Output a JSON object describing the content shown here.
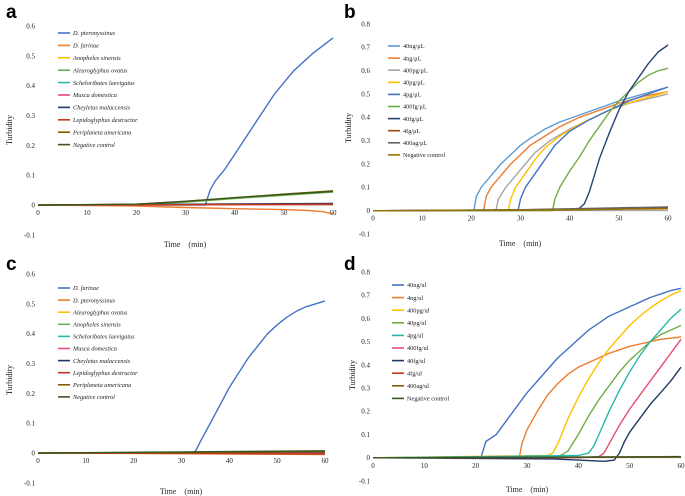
{
  "chart_data": [
    {
      "panel": "a",
      "type": "line",
      "title": "",
      "xlabel": "Time　(min)",
      "ylabel": "Turbidity",
      "xlim": [
        0,
        60
      ],
      "ylim": [
        -0.1,
        0.6
      ],
      "xticks": [
        0,
        10,
        20,
        30,
        40,
        50,
        60
      ],
      "yticks": [
        -0.1,
        0,
        0.1,
        0.2,
        0.3,
        0.4,
        0.5,
        0.6
      ],
      "ytick_labels": [
        "-0.1",
        "0",
        "0.1",
        "0.2",
        "0.3",
        "0.4",
        "0.5",
        "0.6"
      ],
      "legend_italic": true,
      "legend_position": "top-left",
      "series": [
        {
          "name": "D. pteronyssinus",
          "color": "#4472c4",
          "x": [
            0,
            34,
            35,
            36,
            38,
            40,
            42,
            44,
            46,
            48,
            50,
            52,
            54,
            56,
            58,
            60
          ],
          "y": [
            0,
            0,
            0.05,
            0.08,
            0.12,
            0.17,
            0.22,
            0.27,
            0.32,
            0.37,
            0.41,
            0.45,
            0.48,
            0.51,
            0.535,
            0.56
          ]
        },
        {
          "name": "D. farinae",
          "color": "#ed7d31",
          "x": [
            0,
            20,
            30,
            40,
            50,
            55,
            58,
            60
          ],
          "y": [
            0,
            -0.003,
            -0.008,
            -0.012,
            -0.015,
            -0.018,
            -0.022,
            -0.03
          ]
        },
        {
          "name": "Anopheles sinensis",
          "color": "#ffc000",
          "x": [
            0,
            20,
            30,
            40,
            50,
            60
          ],
          "y": [
            0,
            0.003,
            0.012,
            0.024,
            0.036,
            0.048
          ]
        },
        {
          "name": "Aleuroglyphus ovatus",
          "color": "#70ad47",
          "x": [
            0,
            20,
            30,
            40,
            50,
            60
          ],
          "y": [
            0,
            0.002,
            0.01,
            0.022,
            0.033,
            0.044
          ]
        },
        {
          "name": "Scheloribates laevigatus",
          "color": "#2ab7a9",
          "x": [
            0,
            60
          ],
          "y": [
            0,
            0.004
          ]
        },
        {
          "name": "Musca domestica",
          "color": "#e64e6e",
          "x": [
            0,
            60
          ],
          "y": [
            0,
            0.002
          ]
        },
        {
          "name": "Cheyletus malaccensis",
          "color": "#1f3864",
          "x": [
            0,
            60
          ],
          "y": [
            0,
            0.006
          ]
        },
        {
          "name": "Lepidoglyphus destructor",
          "color": "#c0391b",
          "x": [
            0,
            60
          ],
          "y": [
            0,
            0.003
          ]
        },
        {
          "name": "Periplaneta americana",
          "color": "#7f6000",
          "x": [
            0,
            20,
            30,
            40,
            50,
            60
          ],
          "y": [
            0,
            0.003,
            0.013,
            0.025,
            0.037,
            0.048
          ]
        },
        {
          "name": "Negative control",
          "color": "#375623",
          "x": [
            0,
            20,
            30,
            40,
            50,
            60
          ],
          "y": [
            0,
            0.003,
            0.013,
            0.025,
            0.036,
            0.046
          ]
        }
      ]
    },
    {
      "panel": "b",
      "type": "line",
      "title": "",
      "xlabel": "Time　(min)",
      "ylabel": "Turbidity",
      "xlim": [
        0,
        60
      ],
      "ylim": [
        -0.1,
        0.8
      ],
      "xticks": [
        0,
        10,
        20,
        30,
        40,
        50,
        60
      ],
      "yticks": [
        -0.1,
        0,
        0.1,
        0.2,
        0.3,
        0.4,
        0.5,
        0.6,
        0.7,
        0.8
      ],
      "ytick_labels": [
        "-0.1",
        "0",
        "0.1",
        "0.2",
        "0.3",
        "0.4",
        "0.5",
        "0.6",
        "0.7",
        "0.8"
      ],
      "legend_italic": false,
      "legend_position": "top-left",
      "series": [
        {
          "name": "40ng/μL",
          "color": "#5b9bd5",
          "x": [
            0,
            20.5,
            21,
            22,
            24,
            26,
            28,
            30,
            32,
            35,
            38,
            42,
            46,
            50,
            55,
            60
          ],
          "y": [
            0,
            0,
            0.06,
            0.1,
            0.15,
            0.2,
            0.24,
            0.28,
            0.31,
            0.35,
            0.38,
            0.41,
            0.44,
            0.47,
            0.5,
            0.53
          ]
        },
        {
          "name": "4ng/μL",
          "color": "#ed7d31",
          "x": [
            0,
            22.5,
            23,
            24,
            26,
            28,
            30,
            32,
            35,
            38,
            42,
            46,
            50,
            55,
            60
          ],
          "y": [
            0,
            0,
            0.06,
            0.1,
            0.15,
            0.2,
            0.24,
            0.28,
            0.32,
            0.36,
            0.4,
            0.43,
            0.46,
            0.49,
            0.51
          ]
        },
        {
          "name": "400pg/μL",
          "color": "#a5a5a5",
          "x": [
            0,
            25,
            25.5,
            27,
            29,
            31,
            33,
            36,
            40,
            44,
            48,
            52,
            56,
            60
          ],
          "y": [
            0,
            0,
            0.05,
            0.1,
            0.15,
            0.2,
            0.25,
            0.3,
            0.35,
            0.39,
            0.43,
            0.46,
            0.48,
            0.5
          ]
        },
        {
          "name": "40pg/μL",
          "color": "#ffc000",
          "x": [
            0,
            27.5,
            28,
            29,
            31,
            33,
            35,
            38,
            42,
            46,
            50,
            55,
            60
          ],
          "y": [
            0,
            0,
            0.05,
            0.1,
            0.16,
            0.22,
            0.27,
            0.32,
            0.37,
            0.41,
            0.45,
            0.48,
            0.51
          ]
        },
        {
          "name": "4pg/μL",
          "color": "#4472c4",
          "x": [
            0,
            29.5,
            30,
            31,
            33,
            35,
            37,
            40,
            44,
            48,
            52,
            56,
            60
          ],
          "y": [
            0,
            0,
            0.05,
            0.1,
            0.16,
            0.22,
            0.28,
            0.34,
            0.39,
            0.43,
            0.47,
            0.5,
            0.53
          ]
        },
        {
          "name": "400fg/μL",
          "color": "#70ad47",
          "x": [
            0,
            36.5,
            37,
            38,
            40,
            42,
            44,
            46,
            48,
            50,
            52,
            54,
            56,
            58,
            60
          ],
          "y": [
            0,
            0,
            0.05,
            0.1,
            0.17,
            0.23,
            0.3,
            0.36,
            0.42,
            0.47,
            0.51,
            0.55,
            0.58,
            0.6,
            0.61
          ]
        },
        {
          "name": "40fg/μL",
          "color": "#264478",
          "x": [
            0,
            40,
            42,
            43,
            44,
            45,
            46,
            48,
            50,
            52,
            54,
            56,
            58,
            60
          ],
          "y": [
            0,
            0.005,
            0.01,
            0.03,
            0.08,
            0.15,
            0.22,
            0.33,
            0.43,
            0.51,
            0.57,
            0.63,
            0.68,
            0.71
          ]
        },
        {
          "name": "4fg/μL",
          "color": "#9e480e",
          "x": [
            0,
            30,
            45,
            60
          ],
          "y": [
            0,
            0.003,
            0.008,
            0.012
          ]
        },
        {
          "name": "400ag/μL",
          "color": "#636363",
          "x": [
            0,
            30,
            45,
            60
          ],
          "y": [
            0,
            0.004,
            0.01,
            0.016
          ]
        },
        {
          "name": "Negative control",
          "color": "#997300",
          "x": [
            0,
            30,
            45,
            60
          ],
          "y": [
            0,
            0.002,
            0.005,
            0.008
          ]
        }
      ]
    },
    {
      "panel": "c",
      "type": "line",
      "title": "",
      "xlabel": "Time　(min)",
      "ylabel": "Turbidity",
      "xlim": [
        0,
        60
      ],
      "ylim": [
        -0.1,
        0.6
      ],
      "xticks": [
        0,
        10,
        20,
        30,
        40,
        50,
        60
      ],
      "yticks": [
        -0.1,
        0,
        0.1,
        0.2,
        0.3,
        0.4,
        0.5,
        0.6
      ],
      "ytick_labels": [
        "-0.1",
        "0",
        "0.1",
        "0.2",
        "0.3",
        "0.4",
        "0.5",
        "0.6"
      ],
      "legend_italic": true,
      "legend_position": "top-left",
      "series": [
        {
          "name": "D. farinae",
          "color": "#4472c4",
          "x": [
            0,
            32.5,
            33,
            34,
            36,
            38,
            40,
            42,
            44,
            46,
            48,
            50,
            52,
            54,
            56,
            58,
            60
          ],
          "y": [
            0,
            0,
            0.01,
            0.04,
            0.1,
            0.16,
            0.22,
            0.27,
            0.32,
            0.36,
            0.4,
            0.43,
            0.455,
            0.475,
            0.49,
            0.5,
            0.51
          ]
        },
        {
          "name": "D. pteronyssinus",
          "color": "#ed7d31",
          "x": [
            0,
            30,
            60
          ],
          "y": [
            0,
            -0.002,
            -0.005
          ]
        },
        {
          "name": "Aleuroglyphus ovatus",
          "color": "#ffc000",
          "x": [
            0,
            30,
            60
          ],
          "y": [
            0,
            0.001,
            0.003
          ]
        },
        {
          "name": "Anopheles sinensis",
          "color": "#70ad47",
          "x": [
            0,
            30,
            60
          ],
          "y": [
            0,
            0.002,
            0.004
          ]
        },
        {
          "name": "Scheloribates laevigatus",
          "color": "#2ab7a9",
          "x": [
            0,
            30,
            60
          ],
          "y": [
            0,
            0.003,
            0.006
          ]
        },
        {
          "name": "Musca domestica",
          "color": "#e64e6e",
          "x": [
            0,
            30,
            60
          ],
          "y": [
            0,
            0.001,
            0.002
          ]
        },
        {
          "name": "Cheyletus malaccensis",
          "color": "#1f3864",
          "x": [
            0,
            30,
            60
          ],
          "y": [
            0,
            0.002,
            0.004
          ]
        },
        {
          "name": "Lepidoglyphus destructor",
          "color": "#c0391b",
          "x": [
            0,
            30,
            60
          ],
          "y": [
            0,
            -0.001,
            -0.003
          ]
        },
        {
          "name": "Periplaneta americana",
          "color": "#7f6000",
          "x": [
            0,
            30,
            60
          ],
          "y": [
            0,
            0.002,
            0.005
          ]
        },
        {
          "name": "Negative control",
          "color": "#375623",
          "x": [
            0,
            30,
            60
          ],
          "y": [
            0,
            0.004,
            0.008
          ]
        }
      ]
    },
    {
      "panel": "d",
      "type": "line",
      "title": "",
      "xlabel": "Time　(min)",
      "ylabel": "Turbidity",
      "xlim": [
        0,
        60
      ],
      "ylim": [
        -0.1,
        0.8
      ],
      "xticks": [
        0,
        10,
        20,
        30,
        40,
        50,
        60
      ],
      "yticks": [
        -0.1,
        0,
        0.1,
        0.2,
        0.3,
        0.4,
        0.5,
        0.6,
        0.7,
        0.8
      ],
      "ytick_labels": [
        "-0.1",
        "0",
        "0.1",
        "0.2",
        "0.3",
        "0.4",
        "0.5",
        "0.6",
        "0.7",
        "0.8"
      ],
      "legend_italic": false,
      "legend_position": "top-left",
      "series": [
        {
          "name": "40ng/ul",
          "color": "#4472c4",
          "x": [
            0,
            21,
            22,
            24,
            26,
            28,
            30,
            32,
            34,
            36,
            38,
            40,
            42,
            44,
            46,
            48,
            50,
            52,
            54,
            56,
            58,
            60
          ],
          "y": [
            0,
            0,
            0.07,
            0.1,
            0.16,
            0.22,
            0.28,
            0.33,
            0.38,
            0.43,
            0.47,
            0.51,
            0.55,
            0.58,
            0.61,
            0.63,
            0.65,
            0.67,
            0.69,
            0.705,
            0.72,
            0.73
          ]
        },
        {
          "name": "4ng/ul",
          "color": "#ed7d31",
          "x": [
            0,
            28.5,
            29,
            30,
            32,
            34,
            36,
            38,
            40,
            42,
            44,
            46,
            48,
            50,
            52,
            54,
            56,
            58,
            60
          ],
          "y": [
            0,
            0,
            0.06,
            0.12,
            0.2,
            0.27,
            0.32,
            0.36,
            0.39,
            0.41,
            0.43,
            0.45,
            0.465,
            0.48,
            0.49,
            0.5,
            0.51,
            0.515,
            0.52
          ]
        },
        {
          "name": "400pg/ul",
          "color": "#ffc000",
          "x": [
            0,
            34,
            35,
            36,
            38,
            40,
            42,
            44,
            46,
            48,
            50,
            52,
            54,
            56,
            58,
            60
          ],
          "y": [
            0,
            0.01,
            0.02,
            0.06,
            0.17,
            0.26,
            0.34,
            0.41,
            0.47,
            0.52,
            0.57,
            0.61,
            0.645,
            0.675,
            0.7,
            0.72
          ]
        },
        {
          "name": "40pg/ul",
          "color": "#70ad47",
          "x": [
            0,
            36,
            37,
            38,
            40,
            42,
            44,
            46,
            48,
            50,
            52,
            54,
            56,
            58,
            60
          ],
          "y": [
            0,
            0.005,
            0.015,
            0.03,
            0.1,
            0.18,
            0.25,
            0.31,
            0.37,
            0.42,
            0.46,
            0.5,
            0.53,
            0.55,
            0.57
          ]
        },
        {
          "name": "4pg/ul",
          "color": "#2ab7a9",
          "x": [
            0,
            40,
            42,
            43,
            44,
            46,
            48,
            50,
            52,
            54,
            56,
            58,
            60
          ],
          "y": [
            0,
            0.01,
            0.02,
            0.05,
            0.1,
            0.2,
            0.29,
            0.37,
            0.44,
            0.5,
            0.55,
            0.6,
            0.64
          ]
        },
        {
          "name": "400fg/ul",
          "color": "#e64e6e",
          "x": [
            0,
            40,
            44,
            45,
            46,
            48,
            50,
            52,
            54,
            56,
            58,
            60
          ],
          "y": [
            0,
            0,
            0.005,
            0.02,
            0.06,
            0.14,
            0.21,
            0.27,
            0.33,
            0.39,
            0.45,
            0.51
          ]
        },
        {
          "name": "40fg/ul",
          "color": "#1f3864",
          "x": [
            0,
            35,
            40,
            45,
            47,
            48,
            49,
            50,
            52,
            54,
            56,
            58,
            60
          ],
          "y": [
            0,
            -0.005,
            -0.01,
            -0.015,
            -0.01,
            0.02,
            0.07,
            0.11,
            0.17,
            0.23,
            0.28,
            0.33,
            0.39
          ]
        },
        {
          "name": "4fg/ul",
          "color": "#c0391b",
          "x": [
            0,
            30,
            60
          ],
          "y": [
            0,
            0.001,
            0.003
          ]
        },
        {
          "name": "400ag/ul",
          "color": "#7f6000",
          "x": [
            0,
            30,
            60
          ],
          "y": [
            0,
            0.002,
            0.004
          ]
        },
        {
          "name": "Negative control",
          "color": "#375623",
          "x": [
            0,
            30,
            60
          ],
          "y": [
            0,
            0.002,
            0.005
          ]
        }
      ]
    }
  ]
}
